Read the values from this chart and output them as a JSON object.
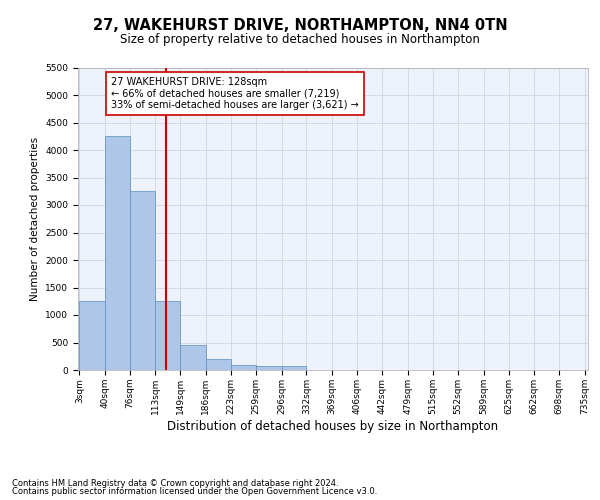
{
  "title": "27, WAKEHURST DRIVE, NORTHAMPTON, NN4 0TN",
  "subtitle": "Size of property relative to detached houses in Northampton",
  "xlabel": "Distribution of detached houses by size in Northampton",
  "ylabel": "Number of detached properties",
  "footnote1": "Contains HM Land Registry data © Crown copyright and database right 2024.",
  "footnote2": "Contains public sector information licensed under the Open Government Licence v3.0.",
  "bin_edges": [
    3,
    40,
    76,
    113,
    149,
    186,
    223,
    259,
    296,
    332,
    369,
    406,
    442,
    479,
    515,
    552,
    589,
    625,
    662,
    698,
    735
  ],
  "bin_labels": [
    "3sqm",
    "40sqm",
    "76sqm",
    "113sqm",
    "149sqm",
    "186sqm",
    "223sqm",
    "259sqm",
    "296sqm",
    "332sqm",
    "369sqm",
    "406sqm",
    "442sqm",
    "479sqm",
    "515sqm",
    "552sqm",
    "589sqm",
    "625sqm",
    "662sqm",
    "698sqm",
    "735sqm"
  ],
  "bar_heights": [
    1250,
    4250,
    3250,
    1250,
    450,
    200,
    100,
    75,
    75,
    0,
    0,
    0,
    0,
    0,
    0,
    0,
    0,
    0,
    0,
    0
  ],
  "bar_color": "#aec6e8",
  "bar_edgecolor": "#5b8db8",
  "property_size": 128,
  "vline_color": "#cc0000",
  "annotation_line1": "27 WAKEHURST DRIVE: 128sqm",
  "annotation_line2": "← 66% of detached houses are smaller (7,219)",
  "annotation_line3": "33% of semi-detached houses are larger (3,621) →",
  "annotation_box_edgecolor": "#cc0000",
  "annotation_box_facecolor": "#ffffff",
  "ylim": [
    0,
    5500
  ],
  "yticks": [
    0,
    500,
    1000,
    1500,
    2000,
    2500,
    3000,
    3500,
    4000,
    4500,
    5000,
    5500
  ],
  "title_fontsize": 10.5,
  "subtitle_fontsize": 8.5,
  "xlabel_fontsize": 8.5,
  "ylabel_fontsize": 7.5,
  "tick_fontsize": 6.5,
  "annotation_fontsize": 7,
  "footnote_fontsize": 6
}
